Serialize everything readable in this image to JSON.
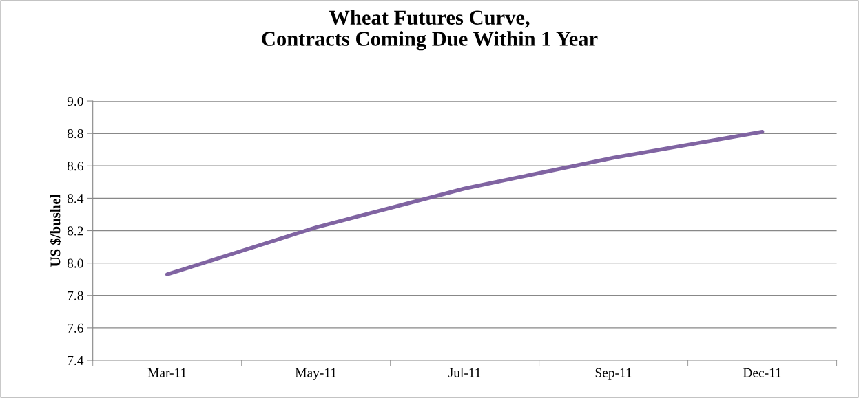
{
  "chart_data": {
    "type": "line",
    "title": "Wheat Futures Curve,\nContracts Coming Due Within 1 Year",
    "ylabel": "US $/bushel",
    "categories": [
      "Mar-11",
      "May-11",
      "Jul-11",
      "Sep-11",
      "Dec-11"
    ],
    "series": [
      {
        "color": "#8064a2",
        "values": [
          7.93,
          8.22,
          8.46,
          8.65,
          8.81
        ]
      }
    ],
    "ylim": [
      7.4,
      9.0
    ],
    "yticks": [
      {
        "value": 7.4,
        "label": "7.4"
      },
      {
        "value": 7.6,
        "label": "7.6"
      },
      {
        "value": 7.8,
        "label": "7.8"
      },
      {
        "value": 8.0,
        "label": "8.0"
      },
      {
        "value": 8.2,
        "label": "8.2"
      },
      {
        "value": 8.4,
        "label": "8.4"
      },
      {
        "value": 8.6,
        "label": "8.6"
      },
      {
        "value": 8.8,
        "label": "8.8"
      },
      {
        "value": 9.0,
        "label": "9.0"
      }
    ],
    "grid": "y",
    "marker": "none",
    "line_style": "solid"
  }
}
